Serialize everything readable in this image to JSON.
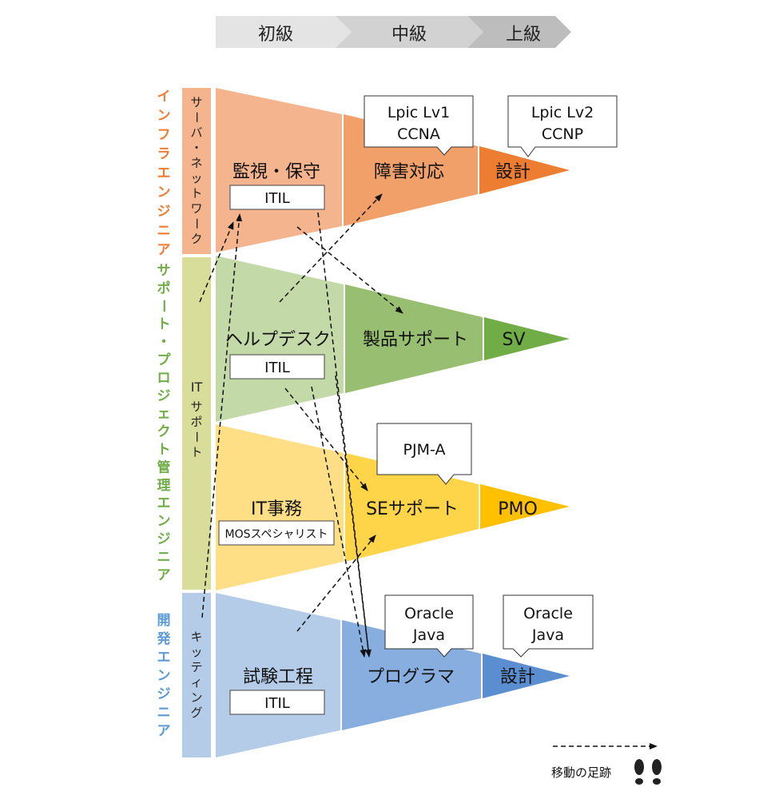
{
  "levels": [
    "初級",
    "中級",
    "上級"
  ],
  "categories": [
    {
      "label": "インフラエンジニア",
      "color": "#ED7D31"
    },
    {
      "label": "サポート・プロジェクト管理エンジニア",
      "color": "#70AD47"
    },
    {
      "label": "開発エンジニア",
      "color": "#5B9BD5"
    }
  ],
  "subcategories": {
    "server_network": "サーバ・ネットワーク",
    "it_support_it": "IT",
    "it_support_kana": "サポート",
    "kitting": "キッティング"
  },
  "rows": {
    "infra": {
      "beginner": "監視・保守",
      "cert": "ITIL",
      "mid": "障害対応",
      "adv": "設計",
      "bubble_mid": [
        "Lpic Lv1",
        "CCNA"
      ],
      "bubble_adv": [
        "Lpic Lv2",
        "CCNP"
      ]
    },
    "helpdesk": {
      "beginner": "ヘルプデスク",
      "cert": "ITIL",
      "mid": "製品サポート",
      "adv": "SV"
    },
    "office": {
      "beginner": "IT事務",
      "cert": "MOSスペシャリスト",
      "mid": "SEサポート",
      "adv": "PMO",
      "bubble_mid": [
        "PJM-A"
      ]
    },
    "dev": {
      "beginner": "試験工程",
      "cert": "ITIL",
      "mid": "プログラマ",
      "adv": "設計",
      "bubble_mid": [
        "Oracle",
        "Java"
      ],
      "bubble_adv": [
        "Oracle",
        "Java"
      ]
    }
  },
  "legend": {
    "label": "移動の足跡",
    "icon": "footprints-icon"
  },
  "colors": {
    "orange": [
      "#F4B58E",
      "#F0A068",
      "#ED7D31"
    ],
    "green": [
      "#C3D9A8",
      "#98BF71",
      "#70AD47"
    ],
    "yellow": [
      "#FEDF85",
      "#FED449",
      "#FFC000"
    ],
    "blue": [
      "#B5CCE8",
      "#87AEDF",
      "#5B8ED1"
    ]
  }
}
